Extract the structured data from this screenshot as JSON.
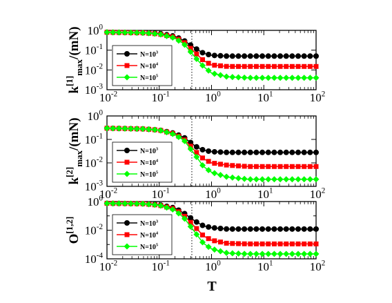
{
  "figure": {
    "xlabel": "T",
    "vline_T": 0.42
  },
  "chart_data": [
    {
      "type": "scatter",
      "xscale": "log",
      "yscale": "log",
      "xlim": [
        0.01,
        100
      ],
      "ylim": [
        0.001,
        1
      ],
      "xticks": [
        "10",
        "10",
        "10",
        "10",
        "10"
      ],
      "xtick_exp": [
        "-2",
        "-1",
        "0",
        "1",
        "2"
      ],
      "yticks": [
        "10",
        "10",
        "10",
        "10"
      ],
      "ytick_exp": [
        "-3",
        "-2",
        "-1",
        "0"
      ],
      "ylabel": "k",
      "ylabel_sup": "[1]",
      "ylabel_sub": "max",
      "ylabel_tail": "/(mN)",
      "xlabel": "",
      "legend_placement": "lower-left",
      "series": [
        {
          "name": "N=10",
          "name_exp": "3",
          "marker": "circle",
          "color": "#000000",
          "x": [
            0.01,
            0.05,
            0.1,
            0.2,
            0.3,
            0.5,
            0.7,
            1,
            2,
            5,
            10,
            20,
            50,
            100
          ],
          "y": [
            0.8,
            0.75,
            0.7,
            0.5,
            0.3,
            0.12,
            0.07,
            0.055,
            0.05,
            0.05,
            0.05,
            0.05,
            0.05,
            0.05
          ]
        },
        {
          "name": "N=10",
          "name_exp": "4",
          "marker": "square",
          "color": "#ff0000",
          "x": [
            0.01,
            0.05,
            0.1,
            0.2,
            0.3,
            0.5,
            0.7,
            1,
            2,
            5,
            10,
            20,
            50,
            100
          ],
          "y": [
            0.8,
            0.75,
            0.65,
            0.45,
            0.25,
            0.07,
            0.03,
            0.018,
            0.015,
            0.015,
            0.015,
            0.015,
            0.015,
            0.015
          ]
        },
        {
          "name": "N=10",
          "name_exp": "5",
          "marker": "diamond",
          "color": "#00ff00",
          "x": [
            0.01,
            0.05,
            0.1,
            0.2,
            0.3,
            0.5,
            0.7,
            1,
            2,
            5,
            10,
            20,
            50,
            100
          ],
          "y": [
            0.8,
            0.75,
            0.65,
            0.4,
            0.2,
            0.04,
            0.015,
            0.007,
            0.0045,
            0.004,
            0.004,
            0.004,
            0.004,
            0.004
          ]
        }
      ]
    },
    {
      "type": "scatter",
      "xscale": "log",
      "yscale": "log",
      "xlim": [
        0.01,
        100
      ],
      "ylim": [
        0.001,
        1
      ],
      "xticks": [
        "10",
        "10",
        "10",
        "10",
        "10"
      ],
      "xtick_exp": [
        "-2",
        "-1",
        "0",
        "1",
        "2"
      ],
      "yticks": [
        "10",
        "10",
        "10",
        "10"
      ],
      "ytick_exp": [
        "-3",
        "-2",
        "-1",
        "0"
      ],
      "ylabel": "k",
      "ylabel_sup": "[2]",
      "ylabel_sub": "max",
      "ylabel_tail": "/(mN)",
      "xlabel": "",
      "legend_placement": "lower-left",
      "series": [
        {
          "name": "N=10",
          "name_exp": "3",
          "marker": "circle",
          "color": "#000000",
          "x": [
            0.01,
            0.05,
            0.1,
            0.2,
            0.3,
            0.5,
            0.7,
            1,
            2,
            5,
            10,
            20,
            50,
            100
          ],
          "y": [
            0.3,
            0.28,
            0.25,
            0.18,
            0.12,
            0.05,
            0.035,
            0.03,
            0.028,
            0.028,
            0.028,
            0.028,
            0.028,
            0.028
          ]
        },
        {
          "name": "N=10",
          "name_exp": "4",
          "marker": "square",
          "color": "#ff0000",
          "x": [
            0.01,
            0.05,
            0.1,
            0.2,
            0.3,
            0.5,
            0.7,
            1,
            2,
            5,
            10,
            20,
            50,
            100
          ],
          "y": [
            0.3,
            0.28,
            0.25,
            0.17,
            0.1,
            0.03,
            0.015,
            0.01,
            0.008,
            0.007,
            0.007,
            0.007,
            0.007,
            0.007
          ]
        },
        {
          "name": "N=10",
          "name_exp": "5",
          "marker": "diamond",
          "color": "#00ff00",
          "x": [
            0.01,
            0.05,
            0.1,
            0.2,
            0.3,
            0.5,
            0.7,
            1,
            2,
            5,
            10,
            20,
            50,
            100
          ],
          "y": [
            0.3,
            0.28,
            0.25,
            0.16,
            0.09,
            0.02,
            0.007,
            0.004,
            0.0025,
            0.002,
            0.002,
            0.002,
            0.002,
            0.002
          ]
        }
      ]
    },
    {
      "type": "scatter",
      "xscale": "log",
      "yscale": "log",
      "xlim": [
        0.01,
        100
      ],
      "ylim": [
        0.0001,
        1
      ],
      "xticks": [
        "10",
        "10",
        "10",
        "10",
        "10"
      ],
      "xtick_exp": [
        "-2",
        "-1",
        "0",
        "1",
        "2"
      ],
      "yticks": [
        "10",
        "10",
        "10"
      ],
      "ytick_exp": [
        "-4",
        "-2",
        "0"
      ],
      "ylabel": "O",
      "ylabel_sup": "[1,2]",
      "ylabel_sub": "",
      "ylabel_tail": "",
      "xlabel": "T",
      "legend_placement": "lower-left",
      "series": [
        {
          "name": "N=10",
          "name_exp": "3",
          "marker": "circle",
          "color": "#000000",
          "x": [
            0.01,
            0.05,
            0.1,
            0.2,
            0.3,
            0.5,
            0.7,
            1,
            2,
            5,
            10,
            20,
            50,
            100
          ],
          "y": [
            0.75,
            0.7,
            0.6,
            0.35,
            0.15,
            0.04,
            0.02,
            0.015,
            0.012,
            0.012,
            0.012,
            0.012,
            0.012,
            0.012
          ]
        },
        {
          "name": "N=10",
          "name_exp": "4",
          "marker": "square",
          "color": "#ff0000",
          "x": [
            0.01,
            0.05,
            0.1,
            0.2,
            0.3,
            0.5,
            0.7,
            1,
            2,
            5,
            10,
            20,
            50,
            100
          ],
          "y": [
            0.75,
            0.7,
            0.55,
            0.3,
            0.1,
            0.015,
            0.004,
            0.002,
            0.0012,
            0.0011,
            0.0011,
            0.0011,
            0.0011,
            0.0011
          ]
        },
        {
          "name": "N=10",
          "name_exp": "5",
          "marker": "diamond",
          "color": "#00ff00",
          "x": [
            0.01,
            0.05,
            0.1,
            0.2,
            0.3,
            0.5,
            0.7,
            1,
            2,
            5,
            10,
            20,
            50,
            100
          ],
          "y": [
            0.75,
            0.7,
            0.55,
            0.25,
            0.07,
            0.006,
            0.0012,
            0.0005,
            0.00025,
            0.00022,
            0.00022,
            0.00022,
            0.00022,
            0.00022
          ]
        }
      ]
    }
  ]
}
